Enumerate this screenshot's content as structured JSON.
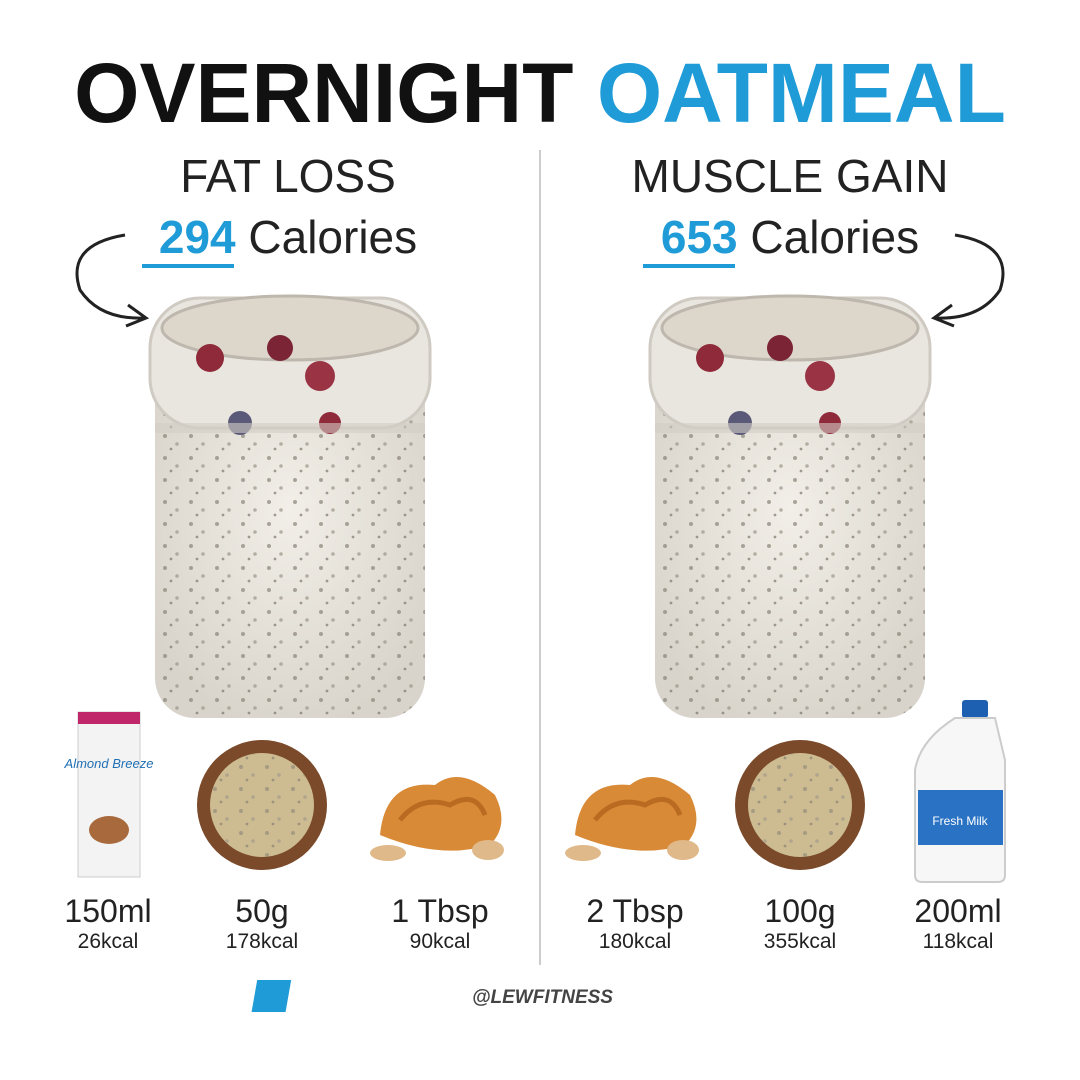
{
  "header": {
    "title_dark": "OVERNIGHT",
    "title_blue": "OATMEAL"
  },
  "panels": [
    {
      "heading": "FAT LOSS",
      "calories": "294",
      "calories_label": "Calories",
      "items": [
        {
          "amount": "150ml",
          "kcal": "26kcal"
        },
        {
          "amount": "50g",
          "kcal": "178kcal"
        },
        {
          "amount": "1 Tbsp",
          "kcal": "90kcal"
        }
      ]
    },
    {
      "heading": "MUSCLE GAIN",
      "calories": "653",
      "calories_label": "Calories",
      "items": [
        {
          "amount": "2 Tbsp",
          "kcal": "180kcal"
        },
        {
          "amount": "100g",
          "kcal": "355kcal"
        },
        {
          "amount": "200ml",
          "kcal": "118kcal"
        }
      ]
    }
  ],
  "products": {
    "carton": "Almond Breeze",
    "jug": "Fresh Milk"
  },
  "footer": {
    "handle": "@LEWFITNESS"
  }
}
